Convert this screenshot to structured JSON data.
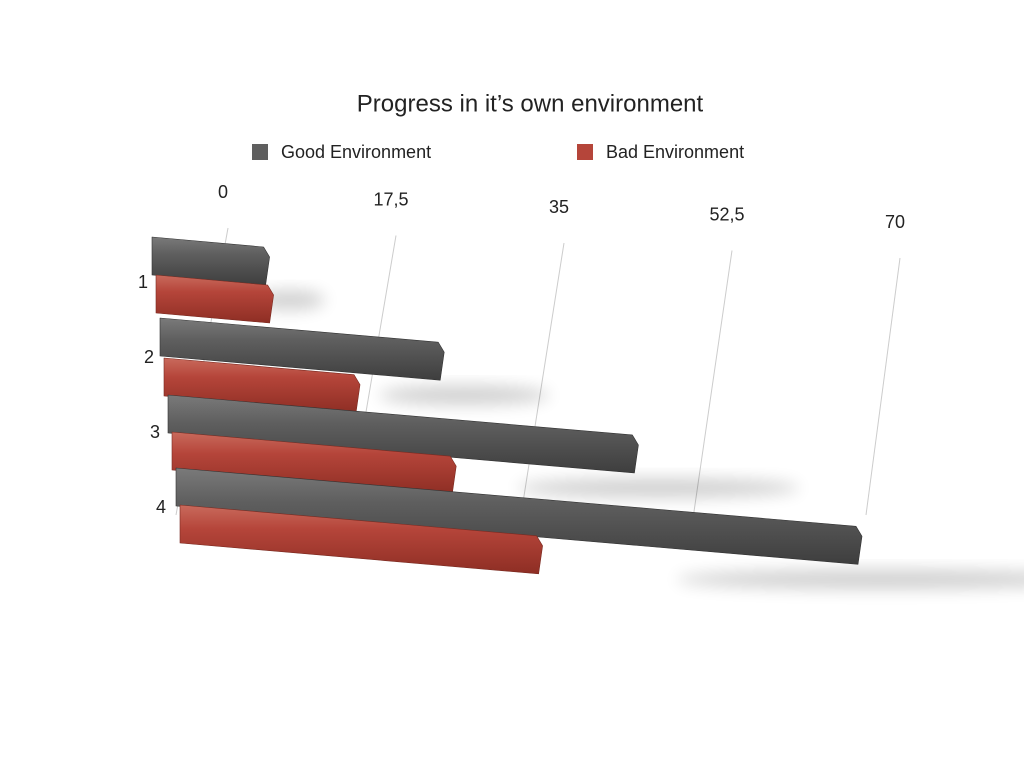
{
  "chart_data": {
    "type": "bar3d",
    "title": "Progress in it’s own environment",
    "categories": [
      "1",
      "2",
      "3",
      "4"
    ],
    "series": [
      {
        "name": "Good Environment",
        "color": "#5f5f5f",
        "values": [
          12,
          29,
          48,
          70
        ]
      },
      {
        "name": "Bad Environment",
        "color": "#b5453a",
        "values": [
          12,
          20,
          29,
          37
        ]
      }
    ],
    "xlim": [
      0,
      70
    ],
    "xticks": [
      0,
      {
        "value": 17.5,
        "label": "17,5"
      },
      35,
      {
        "value": 52.5,
        "label": "52,5"
      },
      70
    ],
    "grid": true,
    "legend": "top"
  }
}
